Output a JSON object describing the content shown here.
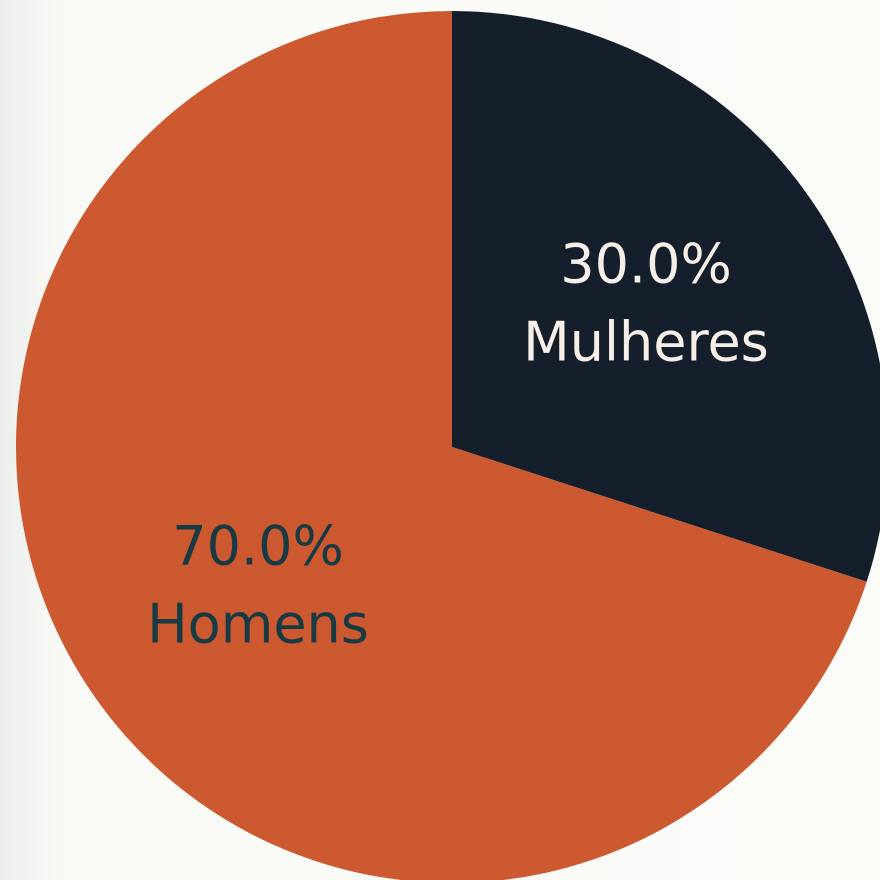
{
  "chart_data": {
    "type": "pie",
    "categories": [
      "Mulheres",
      "Homens"
    ],
    "values": [
      30,
      70
    ],
    "value_labels": [
      "30.0%",
      "70.0%"
    ],
    "colors": [
      "#141f2b",
      "#cc5930"
    ],
    "label_colors": [
      "#f7eee8",
      "#173a44"
    ],
    "start_angle": 0,
    "direction": "clockwise"
  }
}
